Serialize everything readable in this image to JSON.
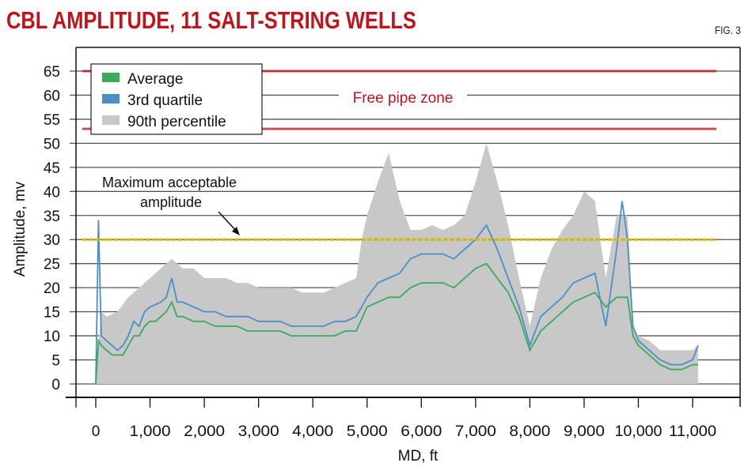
{
  "chart_data": {
    "type": "area",
    "title": "CBL AMPLITUDE, 11 SALT-STRING WELLS",
    "figure_label": "FIG. 3",
    "xlabel": "MD, ft",
    "ylabel": "Amplitude, mv",
    "xlim": [
      -370,
      11900
    ],
    "ylim": [
      -3.5,
      70
    ],
    "x_ticks": [
      0,
      1000,
      2000,
      3000,
      4000,
      5000,
      6000,
      7000,
      8000,
      9000,
      10000,
      11000
    ],
    "x_tick_labels": [
      "0",
      "1,000",
      "2,000",
      "3,000",
      "4,000",
      "5,000",
      "6,000",
      "7,000",
      "8,000",
      "9,000",
      "10,000",
      "11,000"
    ],
    "y_ticks": [
      0,
      5,
      10,
      15,
      20,
      25,
      30,
      35,
      40,
      45,
      50,
      55,
      60,
      65
    ],
    "y_tick_labels": [
      "0",
      "5",
      "10",
      "15",
      "20",
      "25",
      "30",
      "35",
      "40",
      "45",
      "50",
      "55",
      "60",
      "65"
    ],
    "grid": "horizontal",
    "legend_position": "top-left",
    "series": [
      {
        "name": "90th percentile",
        "color": "#c8c8c8",
        "style": "area",
        "points": [
          [
            0,
            0
          ],
          [
            50,
            8
          ],
          [
            100,
            15
          ],
          [
            200,
            14
          ],
          [
            400,
            15
          ],
          [
            600,
            18
          ],
          [
            800,
            20
          ],
          [
            1000,
            22
          ],
          [
            1200,
            24
          ],
          [
            1400,
            26
          ],
          [
            1600,
            24
          ],
          [
            1800,
            24
          ],
          [
            2000,
            22
          ],
          [
            2200,
            22
          ],
          [
            2400,
            22
          ],
          [
            2600,
            21
          ],
          [
            2800,
            21
          ],
          [
            3000,
            20
          ],
          [
            3200,
            20
          ],
          [
            3400,
            20
          ],
          [
            3600,
            20
          ],
          [
            3800,
            19
          ],
          [
            4000,
            19
          ],
          [
            4200,
            19
          ],
          [
            4400,
            20
          ],
          [
            4600,
            21
          ],
          [
            4800,
            22
          ],
          [
            4900,
            30
          ],
          [
            5000,
            35
          ],
          [
            5200,
            42
          ],
          [
            5400,
            48
          ],
          [
            5600,
            38
          ],
          [
            5800,
            32
          ],
          [
            6000,
            32
          ],
          [
            6200,
            33
          ],
          [
            6400,
            32
          ],
          [
            6600,
            33
          ],
          [
            6800,
            35
          ],
          [
            7000,
            42
          ],
          [
            7200,
            50
          ],
          [
            7400,
            42
          ],
          [
            7600,
            33
          ],
          [
            7800,
            22
          ],
          [
            8000,
            12
          ],
          [
            8200,
            22
          ],
          [
            8400,
            28
          ],
          [
            8600,
            32
          ],
          [
            8800,
            35
          ],
          [
            9000,
            40
          ],
          [
            9200,
            38
          ],
          [
            9400,
            22
          ],
          [
            9600,
            35
          ],
          [
            9800,
            35
          ],
          [
            9900,
            12
          ],
          [
            10000,
            10
          ],
          [
            10200,
            9
          ],
          [
            10400,
            7
          ],
          [
            10600,
            7
          ],
          [
            10800,
            7
          ],
          [
            11000,
            7
          ],
          [
            11100,
            8
          ]
        ]
      },
      {
        "name": "3rd quartile",
        "color": "#4a90c8",
        "style": "line",
        "points": [
          [
            0,
            0
          ],
          [
            50,
            34
          ],
          [
            100,
            10
          ],
          [
            200,
            9
          ],
          [
            300,
            8
          ],
          [
            400,
            7
          ],
          [
            500,
            8
          ],
          [
            600,
            10
          ],
          [
            700,
            13
          ],
          [
            800,
            12
          ],
          [
            900,
            15
          ],
          [
            1000,
            16
          ],
          [
            1200,
            17
          ],
          [
            1300,
            18
          ],
          [
            1400,
            22
          ],
          [
            1500,
            17
          ],
          [
            1600,
            17
          ],
          [
            1800,
            16
          ],
          [
            2000,
            15
          ],
          [
            2200,
            15
          ],
          [
            2400,
            14
          ],
          [
            2600,
            14
          ],
          [
            2800,
            14
          ],
          [
            3000,
            13
          ],
          [
            3200,
            13
          ],
          [
            3400,
            13
          ],
          [
            3600,
            12
          ],
          [
            3800,
            12
          ],
          [
            4000,
            12
          ],
          [
            4200,
            12
          ],
          [
            4400,
            13
          ],
          [
            4600,
            13
          ],
          [
            4800,
            14
          ],
          [
            5000,
            18
          ],
          [
            5200,
            21
          ],
          [
            5400,
            22
          ],
          [
            5600,
            23
          ],
          [
            5800,
            26
          ],
          [
            6000,
            27
          ],
          [
            6200,
            27
          ],
          [
            6400,
            27
          ],
          [
            6600,
            26
          ],
          [
            6800,
            28
          ],
          [
            7000,
            30
          ],
          [
            7200,
            33
          ],
          [
            7400,
            28
          ],
          [
            7600,
            22
          ],
          [
            7800,
            16
          ],
          [
            8000,
            8
          ],
          [
            8200,
            14
          ],
          [
            8400,
            16
          ],
          [
            8600,
            18
          ],
          [
            8800,
            21
          ],
          [
            9000,
            22
          ],
          [
            9200,
            23
          ],
          [
            9400,
            12
          ],
          [
            9600,
            28
          ],
          [
            9700,
            38
          ],
          [
            9800,
            30
          ],
          [
            9900,
            12
          ],
          [
            10000,
            9
          ],
          [
            10200,
            7
          ],
          [
            10400,
            5
          ],
          [
            10600,
            4
          ],
          [
            10800,
            4
          ],
          [
            11000,
            5
          ],
          [
            11100,
            8
          ]
        ]
      },
      {
        "name": "Average",
        "color": "#3aaa5c",
        "style": "line",
        "points": [
          [
            0,
            0
          ],
          [
            50,
            9
          ],
          [
            100,
            8
          ],
          [
            200,
            7
          ],
          [
            300,
            6
          ],
          [
            400,
            6
          ],
          [
            500,
            6
          ],
          [
            600,
            8
          ],
          [
            700,
            10
          ],
          [
            800,
            10
          ],
          [
            900,
            12
          ],
          [
            1000,
            13
          ],
          [
            1100,
            13
          ],
          [
            1200,
            14
          ],
          [
            1300,
            15
          ],
          [
            1400,
            17
          ],
          [
            1500,
            14
          ],
          [
            1600,
            14
          ],
          [
            1800,
            13
          ],
          [
            2000,
            13
          ],
          [
            2200,
            12
          ],
          [
            2400,
            12
          ],
          [
            2600,
            12
          ],
          [
            2800,
            11
          ],
          [
            3000,
            11
          ],
          [
            3200,
            11
          ],
          [
            3400,
            11
          ],
          [
            3600,
            10
          ],
          [
            3800,
            10
          ],
          [
            4000,
            10
          ],
          [
            4200,
            10
          ],
          [
            4400,
            10
          ],
          [
            4600,
            11
          ],
          [
            4800,
            11
          ],
          [
            5000,
            16
          ],
          [
            5200,
            17
          ],
          [
            5400,
            18
          ],
          [
            5600,
            18
          ],
          [
            5800,
            20
          ],
          [
            6000,
            21
          ],
          [
            6200,
            21
          ],
          [
            6400,
            21
          ],
          [
            6600,
            20
          ],
          [
            6800,
            22
          ],
          [
            7000,
            24
          ],
          [
            7200,
            25
          ],
          [
            7400,
            22
          ],
          [
            7600,
            19
          ],
          [
            7800,
            14
          ],
          [
            8000,
            7
          ],
          [
            8200,
            11
          ],
          [
            8400,
            13
          ],
          [
            8600,
            15
          ],
          [
            8800,
            17
          ],
          [
            9000,
            18
          ],
          [
            9200,
            19
          ],
          [
            9400,
            16
          ],
          [
            9600,
            18
          ],
          [
            9800,
            18
          ],
          [
            9900,
            10
          ],
          [
            10000,
            8
          ],
          [
            10200,
            6
          ],
          [
            10400,
            4
          ],
          [
            10600,
            3
          ],
          [
            10800,
            3
          ],
          [
            11000,
            4
          ],
          [
            11100,
            4
          ]
        ]
      }
    ],
    "reference_lines": [
      {
        "y": 65,
        "color": "#c0141c"
      },
      {
        "y": 53,
        "color": "#c0141c"
      },
      {
        "y": 30,
        "color": "#d4b800"
      }
    ],
    "annotations": [
      {
        "text": "Free pipe zone",
        "color": "#c0141c"
      },
      {
        "text_line1": "Maximum acceptable",
        "text_line2": "amplitude",
        "color": "#111111"
      }
    ]
  }
}
